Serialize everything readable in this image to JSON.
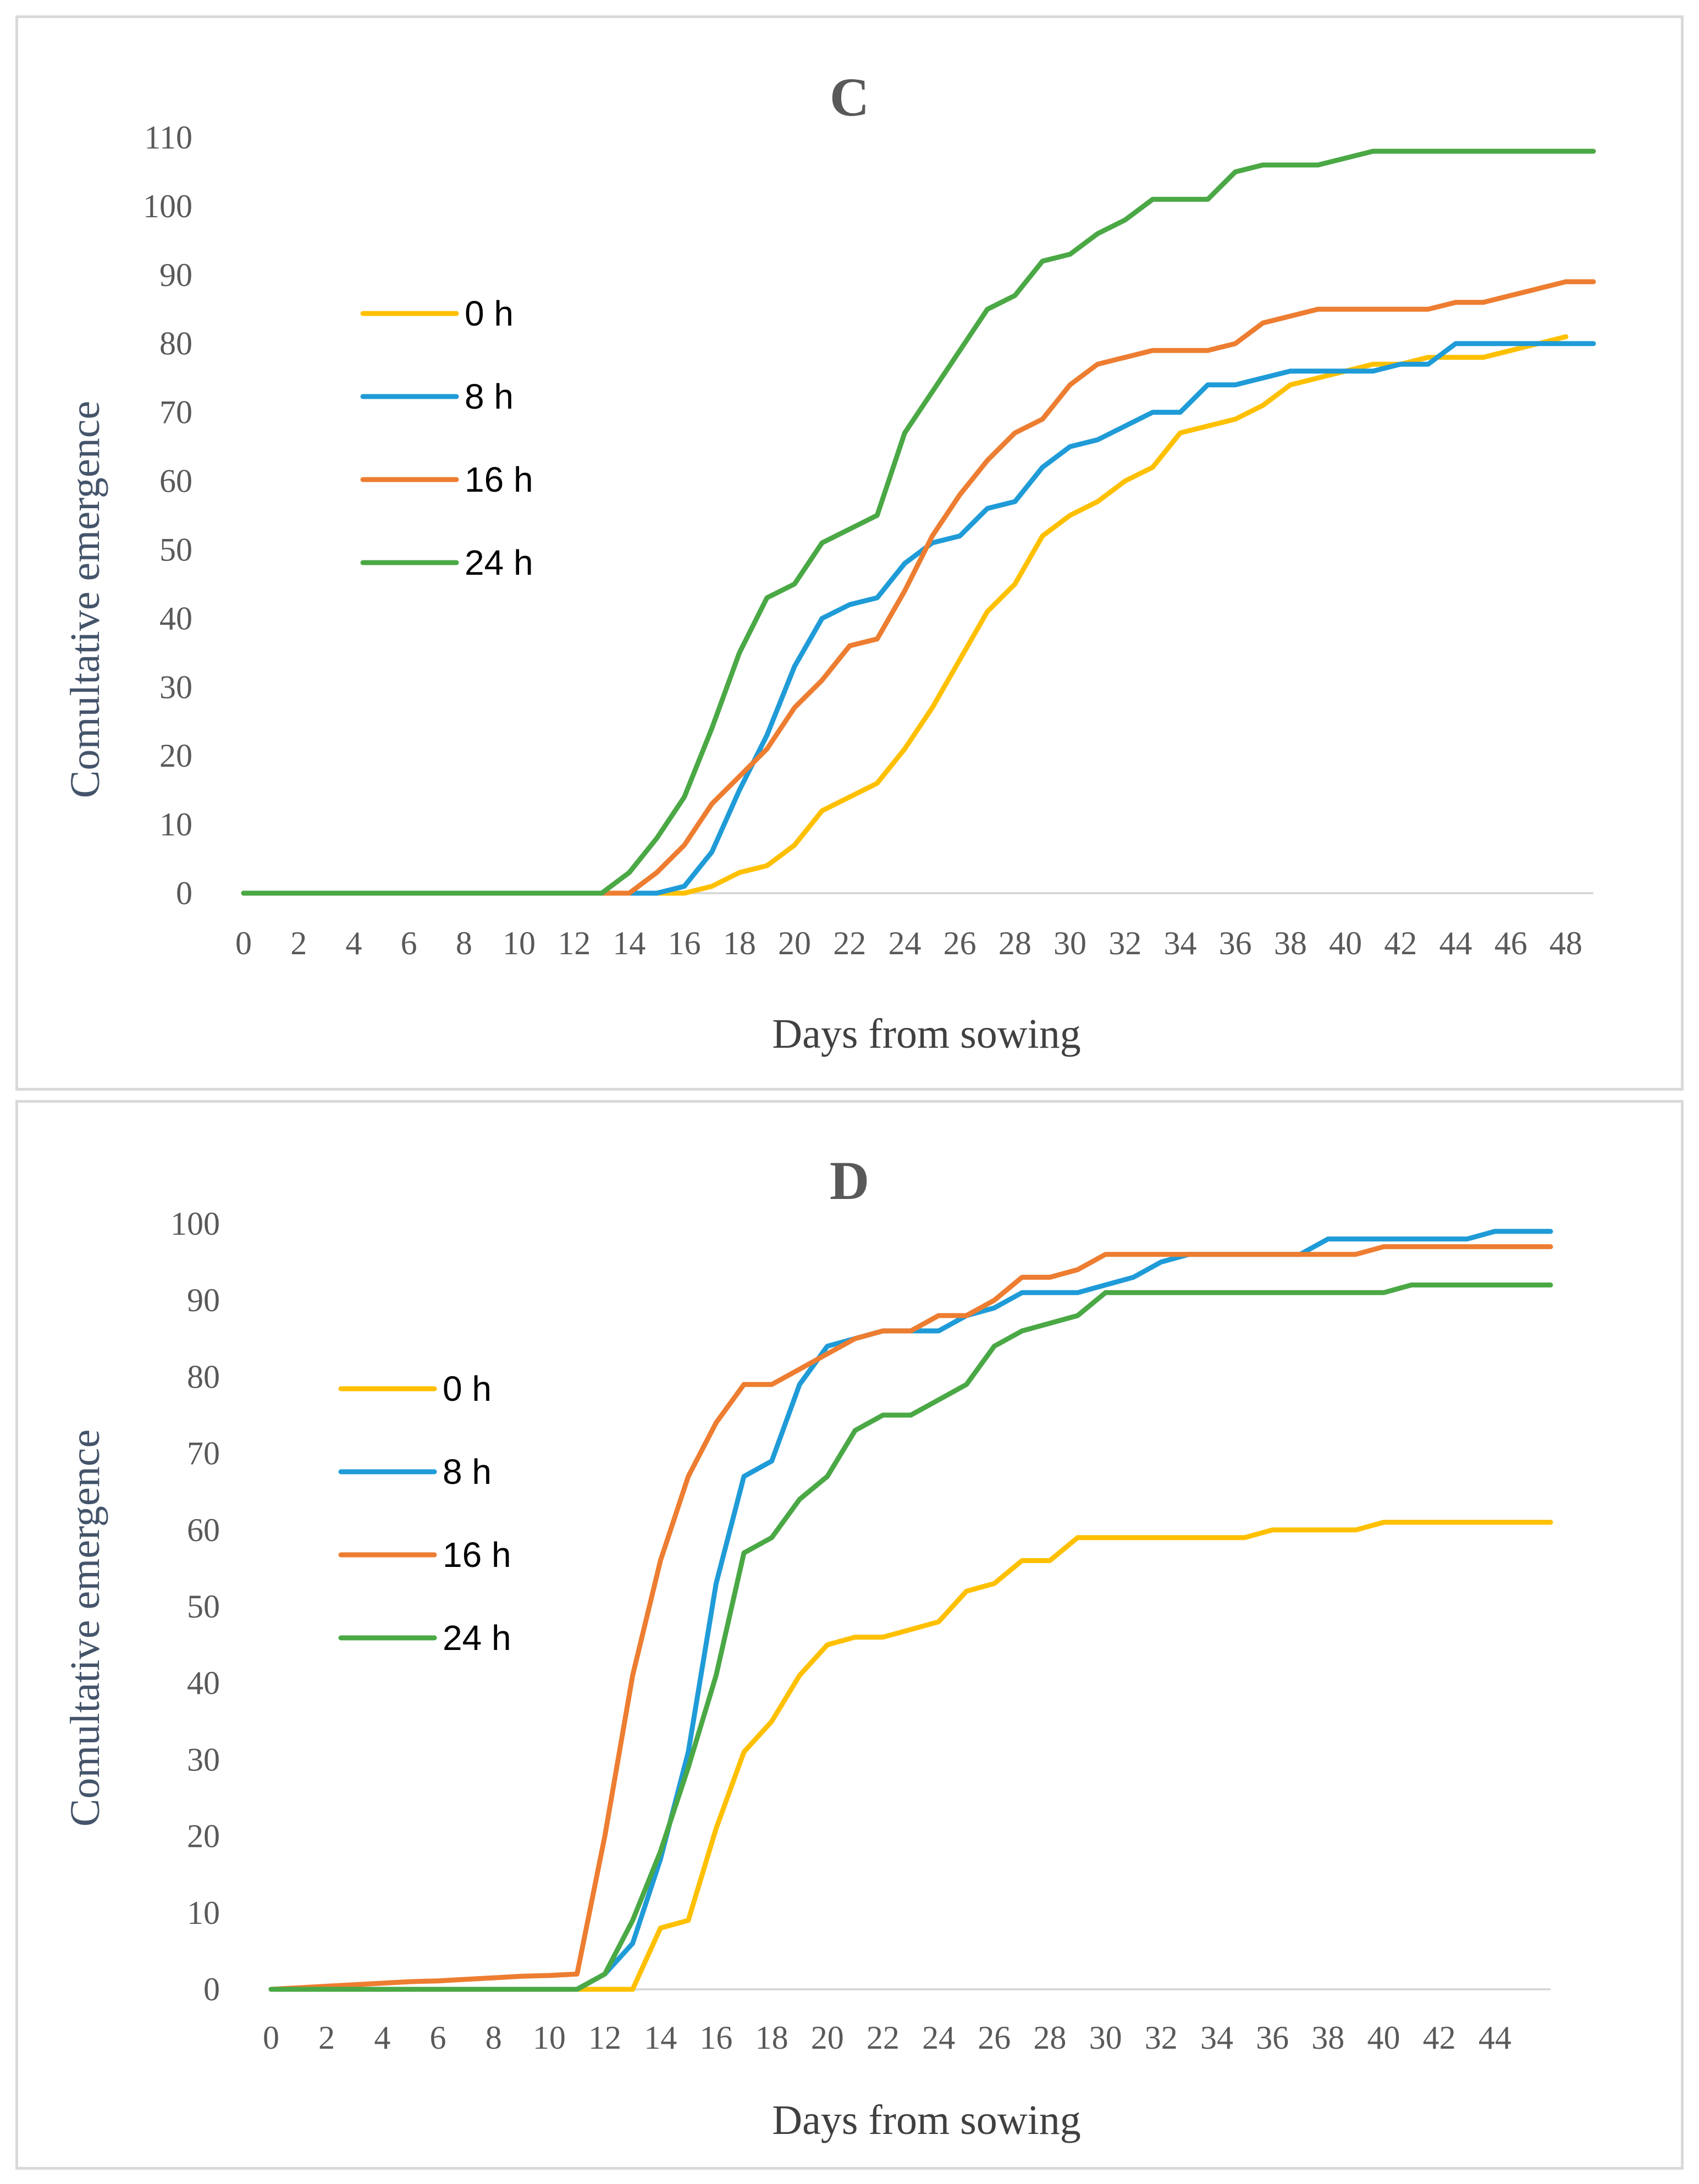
{
  "chart_data": [
    {
      "type": "line",
      "title": "C",
      "xlabel": "Days from sowing",
      "ylabel": "Comultative  emergence",
      "xlim": [
        0,
        49
      ],
      "ylim": [
        0,
        110
      ],
      "x_ticks": [
        "0",
        "2",
        "4",
        "6",
        "8",
        "10",
        "12",
        "14",
        "16",
        "18",
        "20",
        "22",
        "24",
        "26",
        "28",
        "30",
        "32",
        "34",
        "36",
        "38",
        "40",
        "42",
        "44",
        "46",
        "48"
      ],
      "y_ticks": [
        "0",
        "10",
        "20",
        "30",
        "40",
        "50",
        "60",
        "70",
        "80",
        "90",
        "100",
        "110"
      ],
      "legend": [
        "0 h",
        "8 h",
        "16 h",
        "24 h"
      ],
      "legend_position": "left",
      "x": [
        0,
        1,
        2,
        3,
        4,
        5,
        6,
        7,
        8,
        9,
        10,
        11,
        12,
        13,
        14,
        15,
        16,
        17,
        18,
        19,
        20,
        21,
        22,
        23,
        24,
        25,
        26,
        27,
        28,
        29,
        30,
        31,
        32,
        33,
        34,
        35,
        36,
        37,
        38,
        39,
        40,
        41,
        42,
        43,
        44,
        45,
        46,
        47,
        48,
        49
      ],
      "series": [
        {
          "name": "0 h",
          "color": "#ffc000",
          "values": [
            0,
            0,
            0,
            0,
            0,
            0,
            0,
            0,
            0,
            0,
            0,
            0,
            0,
            0,
            0,
            0,
            0,
            1,
            3,
            4,
            7,
            12,
            14,
            16,
            21,
            27,
            34,
            41,
            45,
            52,
            55,
            57,
            60,
            62,
            67,
            68,
            69,
            71,
            74,
            75,
            76,
            77,
            77,
            78,
            78,
            78,
            79,
            80,
            81,
            null
          ]
        },
        {
          "name": "8 h",
          "color": "#1f9bd7",
          "values": [
            0,
            0,
            0,
            0,
            0,
            0,
            0,
            0,
            0,
            0,
            0,
            0,
            0,
            0,
            0,
            0,
            1,
            6,
            15,
            23,
            33,
            40,
            42,
            43,
            48,
            51,
            52,
            56,
            57,
            62,
            65,
            66,
            68,
            70,
            70,
            74,
            74,
            75,
            76,
            76,
            76,
            76,
            77,
            77,
            80,
            80,
            80,
            80,
            80,
            80
          ]
        },
        {
          "name": "16 h",
          "color": "#ed7d31",
          "values": [
            0,
            0,
            0,
            0,
            0,
            0,
            0,
            0,
            0,
            0,
            0,
            0,
            0,
            0,
            0,
            3,
            7,
            13,
            17,
            21,
            27,
            31,
            36,
            37,
            44,
            52,
            58,
            63,
            67,
            69,
            74,
            77,
            78,
            79,
            79,
            79,
            80,
            83,
            84,
            85,
            85,
            85,
            85,
            85,
            86,
            86,
            87,
            88,
            89,
            89
          ]
        },
        {
          "name": "24 h",
          "color": "#4aa845",
          "values": [
            0,
            0,
            0,
            0,
            0,
            0,
            0,
            0,
            0,
            0,
            0,
            0,
            0,
            0,
            3,
            8,
            14,
            24,
            35,
            43,
            45,
            51,
            53,
            55,
            67,
            73,
            79,
            85,
            87,
            92,
            93,
            96,
            98,
            101,
            101,
            101,
            105,
            106,
            106,
            106,
            107,
            108,
            108,
            108,
            108,
            108,
            108,
            108,
            108,
            108
          ]
        }
      ]
    },
    {
      "type": "line",
      "title": "D",
      "xlabel": "Days from sowing",
      "ylabel": "Comultative emergence",
      "xlim": [
        0,
        46
      ],
      "ylim": [
        0,
        100
      ],
      "x_ticks": [
        "0",
        "2",
        "4",
        "6",
        "8",
        "10",
        "12",
        "14",
        "16",
        "18",
        "20",
        "22",
        "24",
        "26",
        "28",
        "30",
        "32",
        "34",
        "36",
        "38",
        "40",
        "42",
        "44"
      ],
      "y_ticks": [
        "0",
        "10",
        "20",
        "30",
        "40",
        "50",
        "60",
        "70",
        "80",
        "90",
        "100"
      ],
      "legend": [
        "0 h",
        "8 h",
        "16 h",
        "24 h"
      ],
      "legend_position": "left",
      "x": [
        0,
        1,
        2,
        3,
        4,
        5,
        6,
        7,
        8,
        9,
        10,
        11,
        12,
        13,
        14,
        15,
        16,
        17,
        18,
        19,
        20,
        21,
        22,
        23,
        24,
        25,
        26,
        27,
        28,
        29,
        30,
        31,
        32,
        33,
        34,
        35,
        36,
        37,
        38,
        39,
        40,
        41,
        42,
        43,
        44,
        45,
        46
      ],
      "series": [
        {
          "name": "0 h",
          "color": "#ffc000",
          "values": [
            0,
            0,
            0,
            0,
            0,
            0,
            0,
            0,
            0,
            0,
            0,
            0,
            0,
            0,
            8,
            9,
            21,
            31,
            35,
            41,
            45,
            46,
            46,
            47,
            48,
            52,
            53,
            56,
            56,
            59,
            59,
            59,
            59,
            59,
            59,
            59,
            60,
            60,
            60,
            60,
            61,
            61,
            61,
            61,
            61,
            61,
            61
          ]
        },
        {
          "name": "8 h",
          "color": "#1f9bd7",
          "values": [
            0,
            0,
            0,
            0,
            0,
            0,
            0,
            0,
            0,
            0,
            0,
            0,
            2,
            6,
            17,
            31,
            53,
            67,
            69,
            79,
            84,
            85,
            86,
            86,
            86,
            88,
            89,
            91,
            91,
            91,
            92,
            93,
            95,
            96,
            96,
            96,
            96,
            96,
            98,
            98,
            98,
            98,
            98,
            98,
            99,
            99,
            99
          ]
        },
        {
          "name": "16 h",
          "color": "#ed7d31",
          "values": [
            0,
            0.2,
            0.4,
            0.6,
            0.8,
            1,
            1.1,
            1.3,
            1.5,
            1.7,
            1.8,
            2,
            20,
            41,
            56,
            67,
            74,
            79,
            79,
            81,
            83,
            85,
            86,
            86,
            88,
            88,
            90,
            93,
            93,
            94,
            96,
            96,
            96,
            96,
            96,
            96,
            96,
            96,
            96,
            96,
            97,
            97,
            97,
            97,
            97,
            97,
            97
          ]
        },
        {
          "name": "24 h",
          "color": "#4aa845",
          "values": [
            0,
            0,
            0,
            0,
            0,
            0,
            0,
            0,
            0,
            0,
            0,
            0,
            2,
            9,
            18,
            29,
            41,
            57,
            59,
            64,
            67,
            73,
            75,
            75,
            77,
            79,
            84,
            86,
            87,
            88,
            91,
            91,
            91,
            91,
            91,
            91,
            91,
            91,
            91,
            91,
            91,
            92,
            92,
            92,
            92,
            92,
            92
          ]
        }
      ]
    }
  ]
}
